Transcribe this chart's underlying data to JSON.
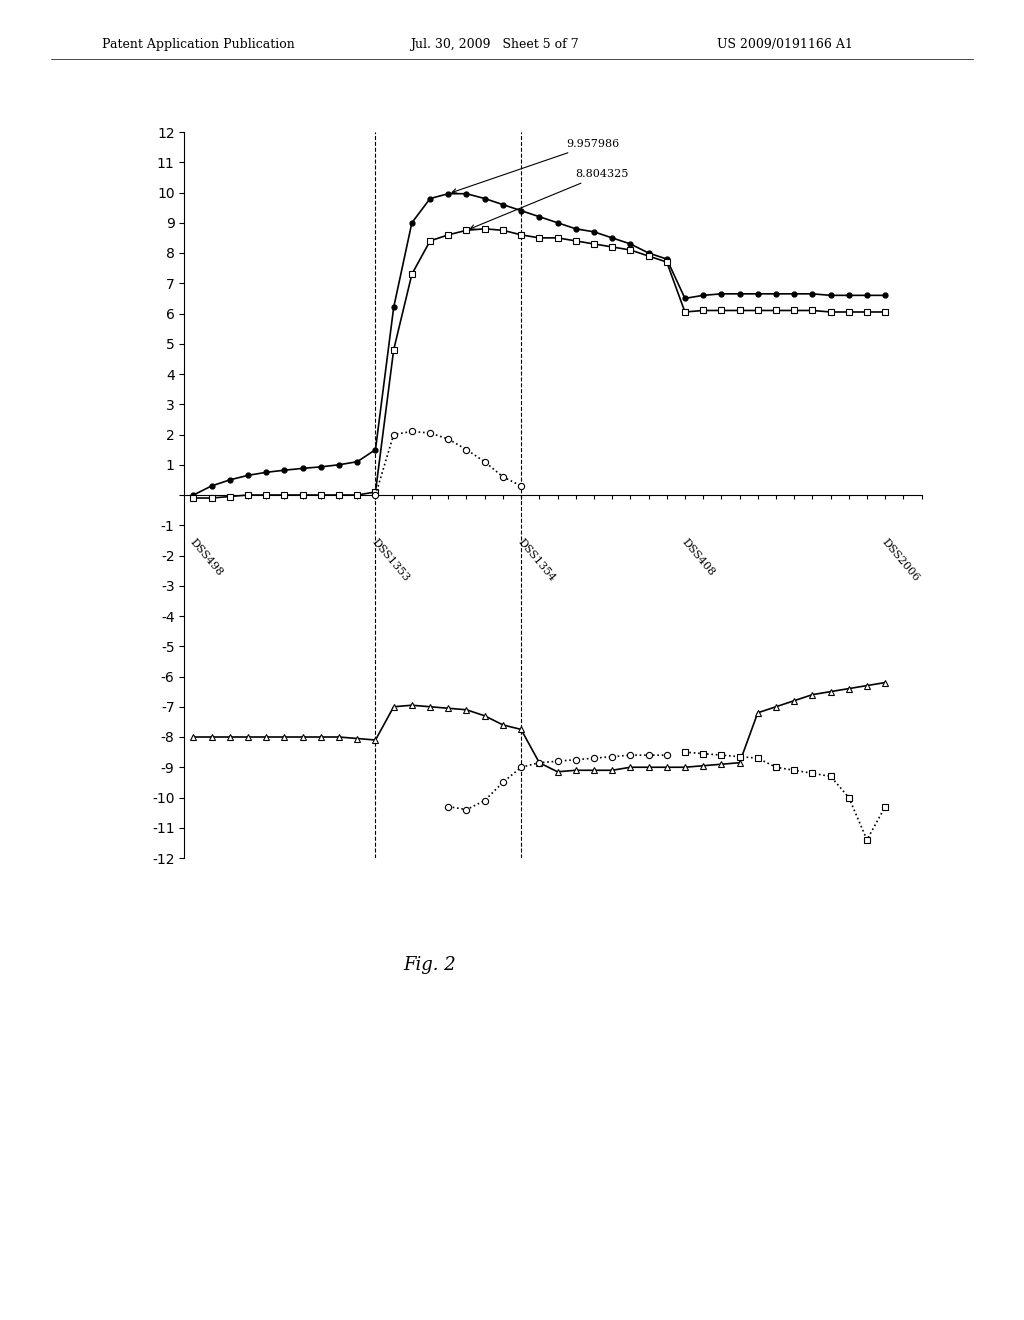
{
  "header_left": "Patent Application Publication",
  "header_mid": "Jul. 30, 2009   Sheet 5 of 7",
  "header_right": "US 2009/0191166 A1",
  "fig_label": "Fig. 2",
  "annotation1": "9.957986",
  "annotation2": "8.804325",
  "x_labels": [
    "DSS498",
    "DSS1353",
    "DSS1354",
    "DSS408",
    "DSS2006"
  ],
  "x_positions": [
    0,
    10,
    18,
    27,
    38
  ],
  "series1_x": [
    0,
    1,
    2,
    3,
    4,
    5,
    6,
    7,
    8,
    9,
    10,
    11,
    12,
    13,
    14,
    15,
    16,
    17,
    18,
    19,
    20,
    21,
    22,
    23,
    24,
    25,
    26,
    27,
    28,
    29,
    30,
    31,
    32,
    33,
    34,
    35,
    36,
    37,
    38
  ],
  "series1_y": [
    0.0,
    0.3,
    0.5,
    0.65,
    0.75,
    0.82,
    0.88,
    0.93,
    1.0,
    1.1,
    1.5,
    6.2,
    9.0,
    9.8,
    9.96,
    9.96,
    9.8,
    9.6,
    9.4,
    9.2,
    9.0,
    8.8,
    8.7,
    8.5,
    8.3,
    8.0,
    7.8,
    6.5,
    6.6,
    6.65,
    6.65,
    6.65,
    6.65,
    6.65,
    6.65,
    6.6,
    6.6,
    6.6,
    6.6
  ],
  "series2_x": [
    0,
    1,
    2,
    3,
    4,
    5,
    6,
    7,
    8,
    9,
    10,
    11,
    12,
    13,
    14,
    15,
    16,
    17,
    18,
    19,
    20,
    21,
    22,
    23,
    24,
    25,
    26,
    27,
    28,
    29,
    30,
    31,
    32,
    33,
    34,
    35,
    36,
    37,
    38
  ],
  "series2_y": [
    -0.1,
    -0.1,
    -0.05,
    0.0,
    0.0,
    0.0,
    0.0,
    0.0,
    0.0,
    0.0,
    0.1,
    4.8,
    7.3,
    8.4,
    8.6,
    8.75,
    8.8,
    8.75,
    8.6,
    8.5,
    8.5,
    8.4,
    8.3,
    8.2,
    8.1,
    7.9,
    7.7,
    6.05,
    6.1,
    6.1,
    6.1,
    6.1,
    6.1,
    6.1,
    6.1,
    6.05,
    6.05,
    6.05,
    6.05
  ],
  "series3_x": [
    10,
    11,
    12,
    13,
    14,
    15,
    16,
    17,
    18
  ],
  "series3_y": [
    0.0,
    2.0,
    2.1,
    2.05,
    1.85,
    1.5,
    1.1,
    0.6,
    0.3
  ],
  "series4_x": [
    0,
    1,
    2,
    3,
    4,
    5,
    6,
    7,
    8,
    9,
    10,
    11,
    12,
    13,
    14,
    15,
    16,
    17,
    18,
    19,
    20,
    21,
    22,
    23,
    24,
    25,
    26,
    27,
    28,
    29,
    30,
    31,
    32,
    33,
    34,
    35,
    36,
    37,
    38
  ],
  "series4_y": [
    -8.0,
    -8.0,
    -8.0,
    -8.0,
    -8.0,
    -8.0,
    -8.0,
    -8.0,
    -8.0,
    -8.05,
    -8.1,
    -7.0,
    -6.95,
    -7.0,
    -7.05,
    -7.1,
    -7.3,
    -7.6,
    -7.75,
    -8.85,
    -9.15,
    -9.1,
    -9.1,
    -9.1,
    -9.0,
    -9.0,
    -9.0,
    -9.0,
    -8.95,
    -8.9,
    -8.85,
    -7.2,
    -7.0,
    -6.8,
    -6.6,
    -6.5,
    -6.4,
    -6.3,
    -6.2
  ],
  "series5_x": [
    14,
    15,
    16,
    17,
    18,
    19,
    20,
    21,
    22,
    23,
    24,
    25,
    26
  ],
  "series5_y": [
    -10.3,
    -10.4,
    -10.1,
    -9.5,
    -9.0,
    -8.85,
    -8.8,
    -8.75,
    -8.7,
    -8.65,
    -8.6,
    -8.6,
    -8.6
  ],
  "series6_x": [
    27,
    28,
    29,
    30,
    31,
    32,
    33,
    34,
    35,
    36,
    37,
    38
  ],
  "series6_y": [
    -8.5,
    -8.55,
    -8.6,
    -8.65,
    -8.7,
    -9.0,
    -9.1,
    -9.2,
    -9.3,
    -10.0,
    -11.4,
    -10.3
  ],
  "vline1_x": 10,
  "vline2_x": 18,
  "ylim": [
    -12,
    12
  ],
  "xlim": [
    -0.5,
    40
  ]
}
